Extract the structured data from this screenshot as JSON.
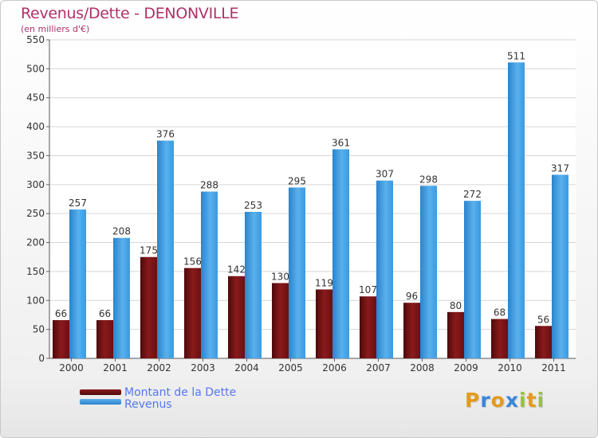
{
  "title": "Revenus/Dette - DENONVILLE",
  "subtitle": "(en milliers d'€)",
  "chart_data": {
    "type": "bar",
    "categories": [
      "2000",
      "2001",
      "2002",
      "2003",
      "2004",
      "2005",
      "2006",
      "2007",
      "2008",
      "2009",
      "2010",
      "2011"
    ],
    "series": [
      {
        "name": "Montant de la Dette",
        "color": "#7a1416",
        "values": [
          66,
          66,
          175,
          156,
          142,
          130,
          119,
          107,
          96,
          80,
          68,
          56
        ]
      },
      {
        "name": "Revenus",
        "color": "#3a9ae0",
        "values": [
          257,
          208,
          376,
          288,
          253,
          295,
          361,
          307,
          298,
          272,
          511,
          317
        ]
      }
    ],
    "y_ticks": [
      "0",
      "50",
      "100",
      "150",
      "200",
      "250",
      "300",
      "350",
      "400",
      "450",
      "500",
      "550"
    ],
    "ylim": [
      0,
      550
    ],
    "grid": true,
    "legend_position": "bottom-left"
  },
  "legend": {
    "debt_label": "Montant de la Dette",
    "revenue_label": "Revenus"
  },
  "brand": {
    "letters": [
      "P",
      "r",
      "o",
      "x",
      "i",
      "t",
      "i"
    ],
    "colors": [
      "#e39b1c",
      "#3b86d8",
      "#e39b1c",
      "#3b86d8",
      "#9ac13b",
      "#e39b1c",
      "#9ac13b"
    ]
  }
}
